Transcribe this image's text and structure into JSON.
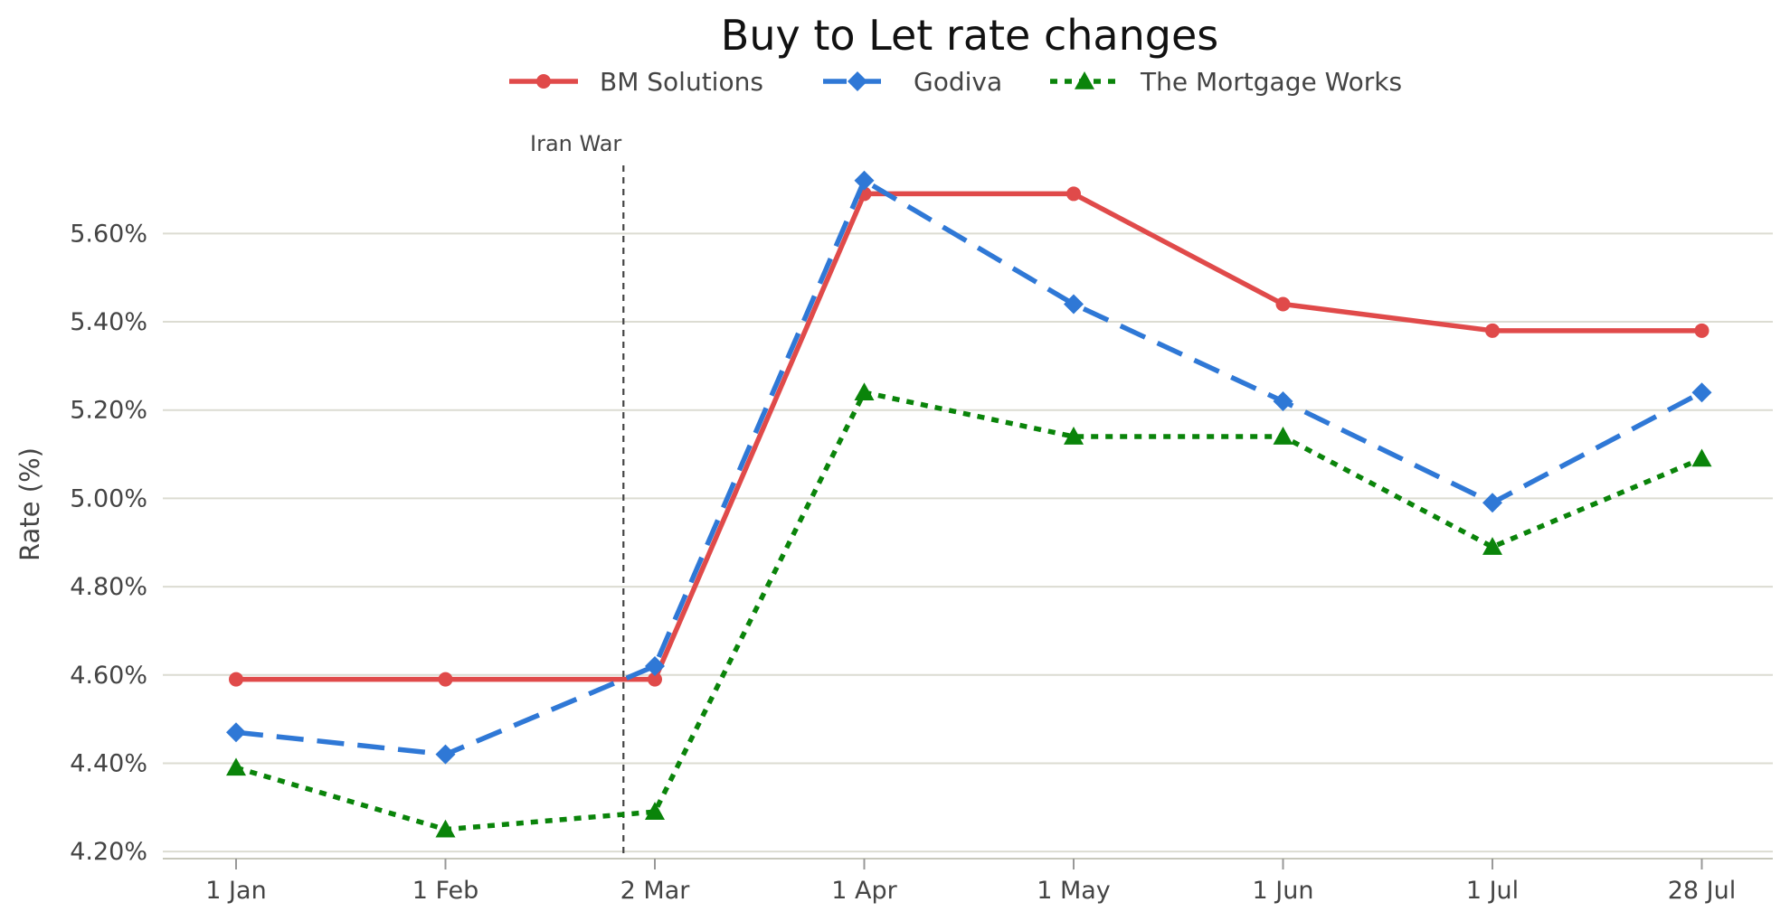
{
  "chart_data": {
    "type": "line",
    "title": "Buy to Let rate changes",
    "xlabel": "",
    "ylabel": "Rate (%)",
    "categories": [
      "1 Jan",
      "1 Feb",
      "2 Mar",
      "1 Apr",
      "1 May",
      "1 Jun",
      "1 Jul",
      "28 Jul"
    ],
    "y_ticks": [
      "4.20%",
      "4.40%",
      "4.60%",
      "4.80%",
      "5.00%",
      "5.20%",
      "5.40%",
      "5.60%"
    ],
    "y_tick_values": [
      4.2,
      4.4,
      4.6,
      4.8,
      5.0,
      5.2,
      5.4,
      5.6
    ],
    "ylim": [
      4.19,
      5.74
    ],
    "grid": true,
    "legend_position": "top-center",
    "series": [
      {
        "name": "BM Solutions",
        "values": [
          4.59,
          4.59,
          4.59,
          5.69,
          5.69,
          5.44,
          5.38,
          5.38
        ],
        "color": "#e04a4a",
        "line_style": "solid",
        "marker": "circle"
      },
      {
        "name": "Godiva",
        "values": [
          4.47,
          4.42,
          4.62,
          5.72,
          5.44,
          5.22,
          4.99,
          5.24
        ],
        "color": "#2f78d6",
        "line_style": "dashed",
        "marker": "diamond"
      },
      {
        "name": "The Mortgage Works",
        "values": [
          4.39,
          4.25,
          4.29,
          5.24,
          5.14,
          5.14,
          4.89,
          5.09
        ],
        "color": "#0a840a",
        "line_style": "dotted",
        "marker": "triangle"
      }
    ],
    "annotations": [
      {
        "text": "Iran War",
        "x_category_position": 1.85,
        "style": "vertical-dashed-line",
        "color": "#444444"
      }
    ]
  }
}
